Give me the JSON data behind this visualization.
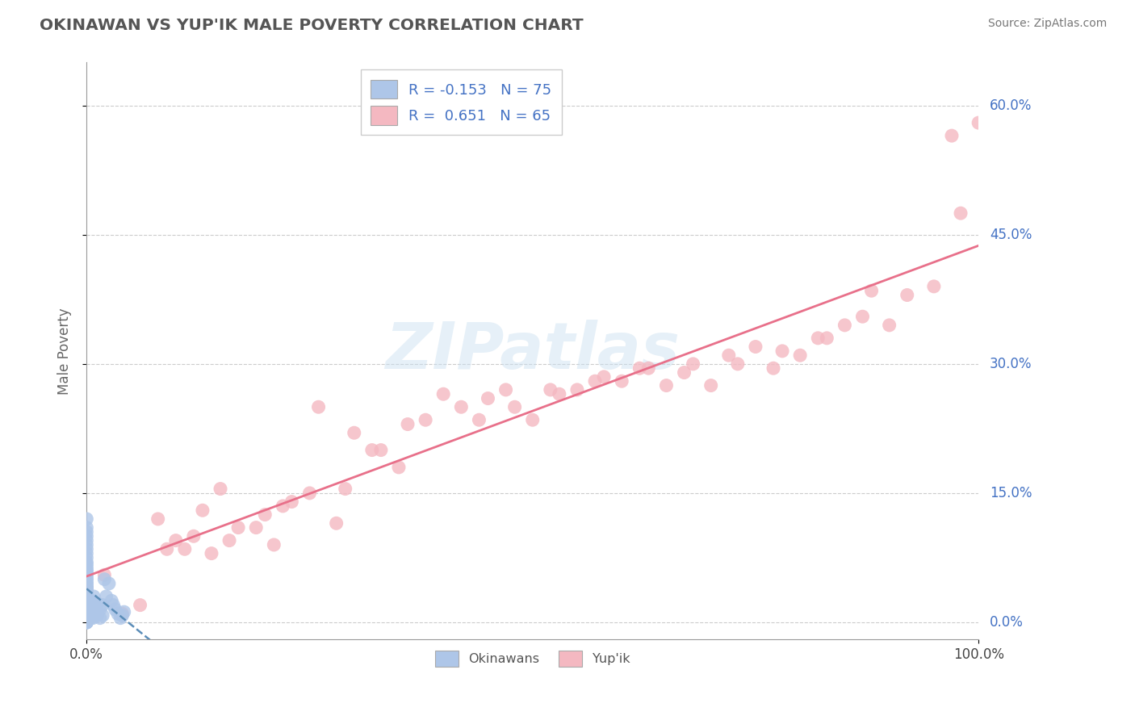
{
  "title": "OKINAWAN VS YUP'IK MALE POVERTY CORRELATION CHART",
  "source": "Source: ZipAtlas.com",
  "ylabel": "Male Poverty",
  "xlim": [
    0,
    1.0
  ],
  "ylim": [
    -0.02,
    0.65
  ],
  "yticks": [
    0.0,
    0.15,
    0.3,
    0.45,
    0.6
  ],
  "ytick_labels": [
    "0.0%",
    "15.0%",
    "30.0%",
    "45.0%",
    "60.0%"
  ],
  "xtick_labels": [
    "0.0%",
    "100.0%"
  ],
  "legend_labels": [
    "Okinawans",
    "Yup'ik"
  ],
  "R_okinawan": -0.153,
  "N_okinawan": 75,
  "R_yupik": 0.651,
  "N_yupik": 65,
  "color_okinawan": "#aec6e8",
  "color_yupik": "#f4b8c1",
  "line_color_okinawan": "#5b8db8",
  "line_color_yupik": "#e8708a",
  "background_color": "#ffffff",
  "grid_color": "#cccccc",
  "okinawan_x": [
    0.0,
    0.0,
    0.0,
    0.0,
    0.0,
    0.0,
    0.0,
    0.0,
    0.0,
    0.0,
    0.0,
    0.0,
    0.0,
    0.0,
    0.0,
    0.0,
    0.0,
    0.0,
    0.0,
    0.0,
    0.0,
    0.0,
    0.0,
    0.0,
    0.0,
    0.0,
    0.0,
    0.0,
    0.0,
    0.0,
    0.0,
    0.0,
    0.0,
    0.0,
    0.0,
    0.0,
    0.0,
    0.0,
    0.0,
    0.0,
    0.0,
    0.0,
    0.0,
    0.0,
    0.0,
    0.0,
    0.0,
    0.0,
    0.0,
    0.0,
    0.005,
    0.005,
    0.007,
    0.007,
    0.007,
    0.008,
    0.008,
    0.01,
    0.01,
    0.012,
    0.012,
    0.015,
    0.015,
    0.018,
    0.018,
    0.02,
    0.022,
    0.025,
    0.028,
    0.03,
    0.032,
    0.035,
    0.038,
    0.04,
    0.042
  ],
  "okinawan_y": [
    0.0,
    0.0,
    0.0,
    0.0,
    0.0,
    0.005,
    0.005,
    0.008,
    0.01,
    0.01,
    0.012,
    0.015,
    0.015,
    0.018,
    0.02,
    0.02,
    0.022,
    0.025,
    0.025,
    0.028,
    0.03,
    0.03,
    0.032,
    0.035,
    0.035,
    0.038,
    0.04,
    0.04,
    0.042,
    0.045,
    0.045,
    0.048,
    0.05,
    0.052,
    0.055,
    0.058,
    0.06,
    0.062,
    0.065,
    0.068,
    0.07,
    0.075,
    0.08,
    0.085,
    0.09,
    0.095,
    0.1,
    0.105,
    0.11,
    0.12,
    0.005,
    0.02,
    0.005,
    0.012,
    0.025,
    0.01,
    0.03,
    0.008,
    0.018,
    0.008,
    0.022,
    0.005,
    0.015,
    0.008,
    0.02,
    0.05,
    0.03,
    0.045,
    0.025,
    0.02,
    0.015,
    0.01,
    0.005,
    0.008,
    0.012
  ],
  "yupik_x": [
    0.0,
    0.02,
    0.04,
    0.06,
    0.08,
    0.09,
    0.1,
    0.11,
    0.12,
    0.13,
    0.14,
    0.15,
    0.16,
    0.17,
    0.19,
    0.2,
    0.21,
    0.22,
    0.23,
    0.25,
    0.26,
    0.28,
    0.29,
    0.3,
    0.32,
    0.33,
    0.35,
    0.36,
    0.38,
    0.4,
    0.42,
    0.44,
    0.45,
    0.47,
    0.48,
    0.5,
    0.52,
    0.53,
    0.55,
    0.57,
    0.58,
    0.6,
    0.62,
    0.63,
    0.65,
    0.67,
    0.68,
    0.7,
    0.72,
    0.73,
    0.75,
    0.77,
    0.78,
    0.8,
    0.82,
    0.83,
    0.85,
    0.87,
    0.88,
    0.9,
    0.92,
    0.95,
    0.97,
    0.98,
    1.0
  ],
  "yupik_y": [
    0.04,
    0.055,
    0.01,
    0.02,
    0.12,
    0.085,
    0.095,
    0.085,
    0.1,
    0.13,
    0.08,
    0.155,
    0.095,
    0.11,
    0.11,
    0.125,
    0.09,
    0.135,
    0.14,
    0.15,
    0.25,
    0.115,
    0.155,
    0.22,
    0.2,
    0.2,
    0.18,
    0.23,
    0.235,
    0.265,
    0.25,
    0.235,
    0.26,
    0.27,
    0.25,
    0.235,
    0.27,
    0.265,
    0.27,
    0.28,
    0.285,
    0.28,
    0.295,
    0.295,
    0.275,
    0.29,
    0.3,
    0.275,
    0.31,
    0.3,
    0.32,
    0.295,
    0.315,
    0.31,
    0.33,
    0.33,
    0.345,
    0.355,
    0.385,
    0.345,
    0.38,
    0.39,
    0.565,
    0.475,
    0.58
  ]
}
